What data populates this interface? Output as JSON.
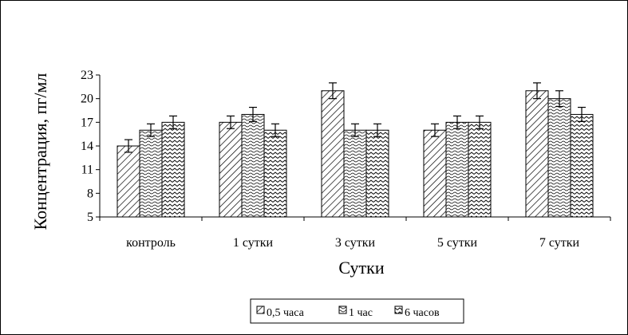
{
  "chart_data": {
    "type": "bar",
    "title": "",
    "xlabel": "Сутки",
    "ylabel": "Концентрация, пг/мл",
    "categories": [
      "контроль",
      "1 сутки",
      "3 сутки",
      "5 сутки",
      "7 сутки"
    ],
    "series": [
      {
        "name": "0,5 часа",
        "values": [
          14,
          17,
          21,
          16,
          21
        ],
        "error": [
          0.8,
          0.8,
          1,
          0.8,
          1
        ],
        "pattern": "diagonal-hatch"
      },
      {
        "name": "1 час",
        "values": [
          16,
          18,
          16,
          17,
          20
        ],
        "error": [
          0.8,
          0.9,
          0.8,
          0.8,
          1
        ],
        "pattern": "horizontal-waves"
      },
      {
        "name": "6 часов",
        "values": [
          17,
          16,
          16,
          17,
          18
        ],
        "error": [
          0.8,
          0.8,
          0.8,
          0.8,
          0.9
        ],
        "pattern": "zigzag"
      }
    ],
    "yticks": [
      5,
      8,
      11,
      14,
      17,
      20,
      23
    ],
    "ylim": [
      5,
      23
    ],
    "grid": false,
    "legend_position": "bottom",
    "colors": {
      "stroke": "#000000",
      "background": "#ffffff"
    }
  }
}
